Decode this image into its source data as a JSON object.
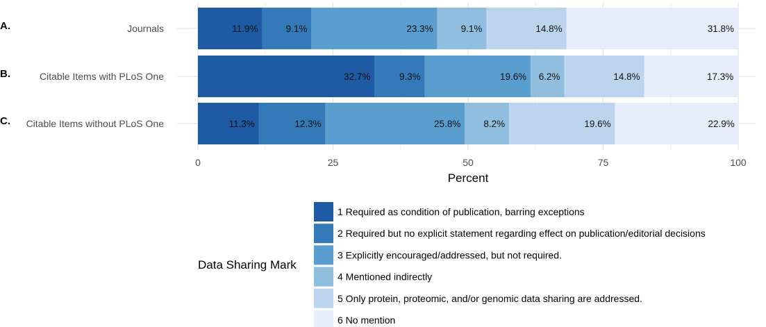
{
  "chart_data": {
    "type": "bar",
    "orientation": "horizontal",
    "stacked": true,
    "categories": [
      "Journals",
      "Citable Items with PLoS One",
      "Citable Items without PLoS One"
    ],
    "panel_letters": [
      "A.",
      "B.",
      "C."
    ],
    "series": [
      {
        "name": "1 Required as condition of publication, barring exceptions",
        "color": "#1f5ba5",
        "values": [
          11.9,
          32.7,
          11.3
        ],
        "labels": [
          "11.9%",
          "32.7%",
          "11.3%"
        ]
      },
      {
        "name": "2 Required but no explicit statement regarding effect on publication/editorial decisions",
        "color": "#3479b8",
        "values": [
          9.1,
          9.3,
          12.3
        ],
        "labels": [
          "9.1%",
          "9.3%",
          "12.3%"
        ]
      },
      {
        "name": "3 Explicitly encouraged/addressed, but not required.",
        "color": "#5a9ecf",
        "values": [
          23.3,
          19.6,
          25.8
        ],
        "labels": [
          "23.3%",
          "19.6%",
          "25.8%"
        ]
      },
      {
        "name": "4 Mentioned indirectly",
        "color": "#8fbedf",
        "values": [
          9.1,
          6.2,
          8.2
        ],
        "labels": [
          "9.1%",
          "6.2%",
          "8.2%"
        ]
      },
      {
        "name": "5 Only protein, proteomic, and/or genomic data sharing are addressed.",
        "color": "#bdd4ee",
        "values": [
          14.8,
          14.8,
          19.6
        ],
        "labels": [
          "14.8%",
          "14.8%",
          "19.6%"
        ]
      },
      {
        "name": "6 No mention",
        "color": "#e6eefb",
        "values": [
          31.8,
          17.3,
          22.9
        ],
        "labels": [
          "31.8%",
          "17.3%",
          "22.9%"
        ]
      }
    ],
    "xlabel": "Percent",
    "xlim": [
      0,
      100
    ],
    "xticks": [
      "0",
      "25",
      "50",
      "75",
      "100"
    ],
    "xtick_values": [
      0,
      25,
      50,
      75,
      100
    ],
    "legend_title": "Data Sharing Mark",
    "legend_position": "bottom",
    "grid": true
  }
}
